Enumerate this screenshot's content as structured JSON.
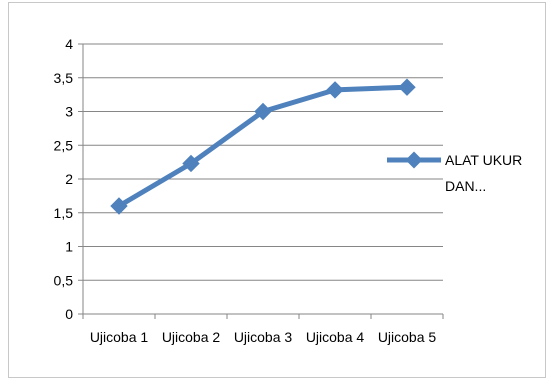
{
  "chart_data": {
    "type": "line",
    "categories": [
      "Ujicoba 1",
      "Ujicoba 2",
      "Ujicoba 3",
      "Ujicoba 4",
      "Ujicoba 5"
    ],
    "series": [
      {
        "name": "ALAT UKUR DAN...",
        "values": [
          1.6,
          2.23,
          3.0,
          3.32,
          3.36
        ],
        "color": "#4F81BD"
      }
    ],
    "ylim": [
      0,
      4
    ],
    "yticks": [
      "0",
      "0,5",
      "1",
      "1,5",
      "2",
      "2,5",
      "3",
      "3,5",
      "4"
    ],
    "grid": true,
    "legend_position": "right",
    "legend_lines": [
      "ALAT UKUR",
      "DAN..."
    ]
  }
}
